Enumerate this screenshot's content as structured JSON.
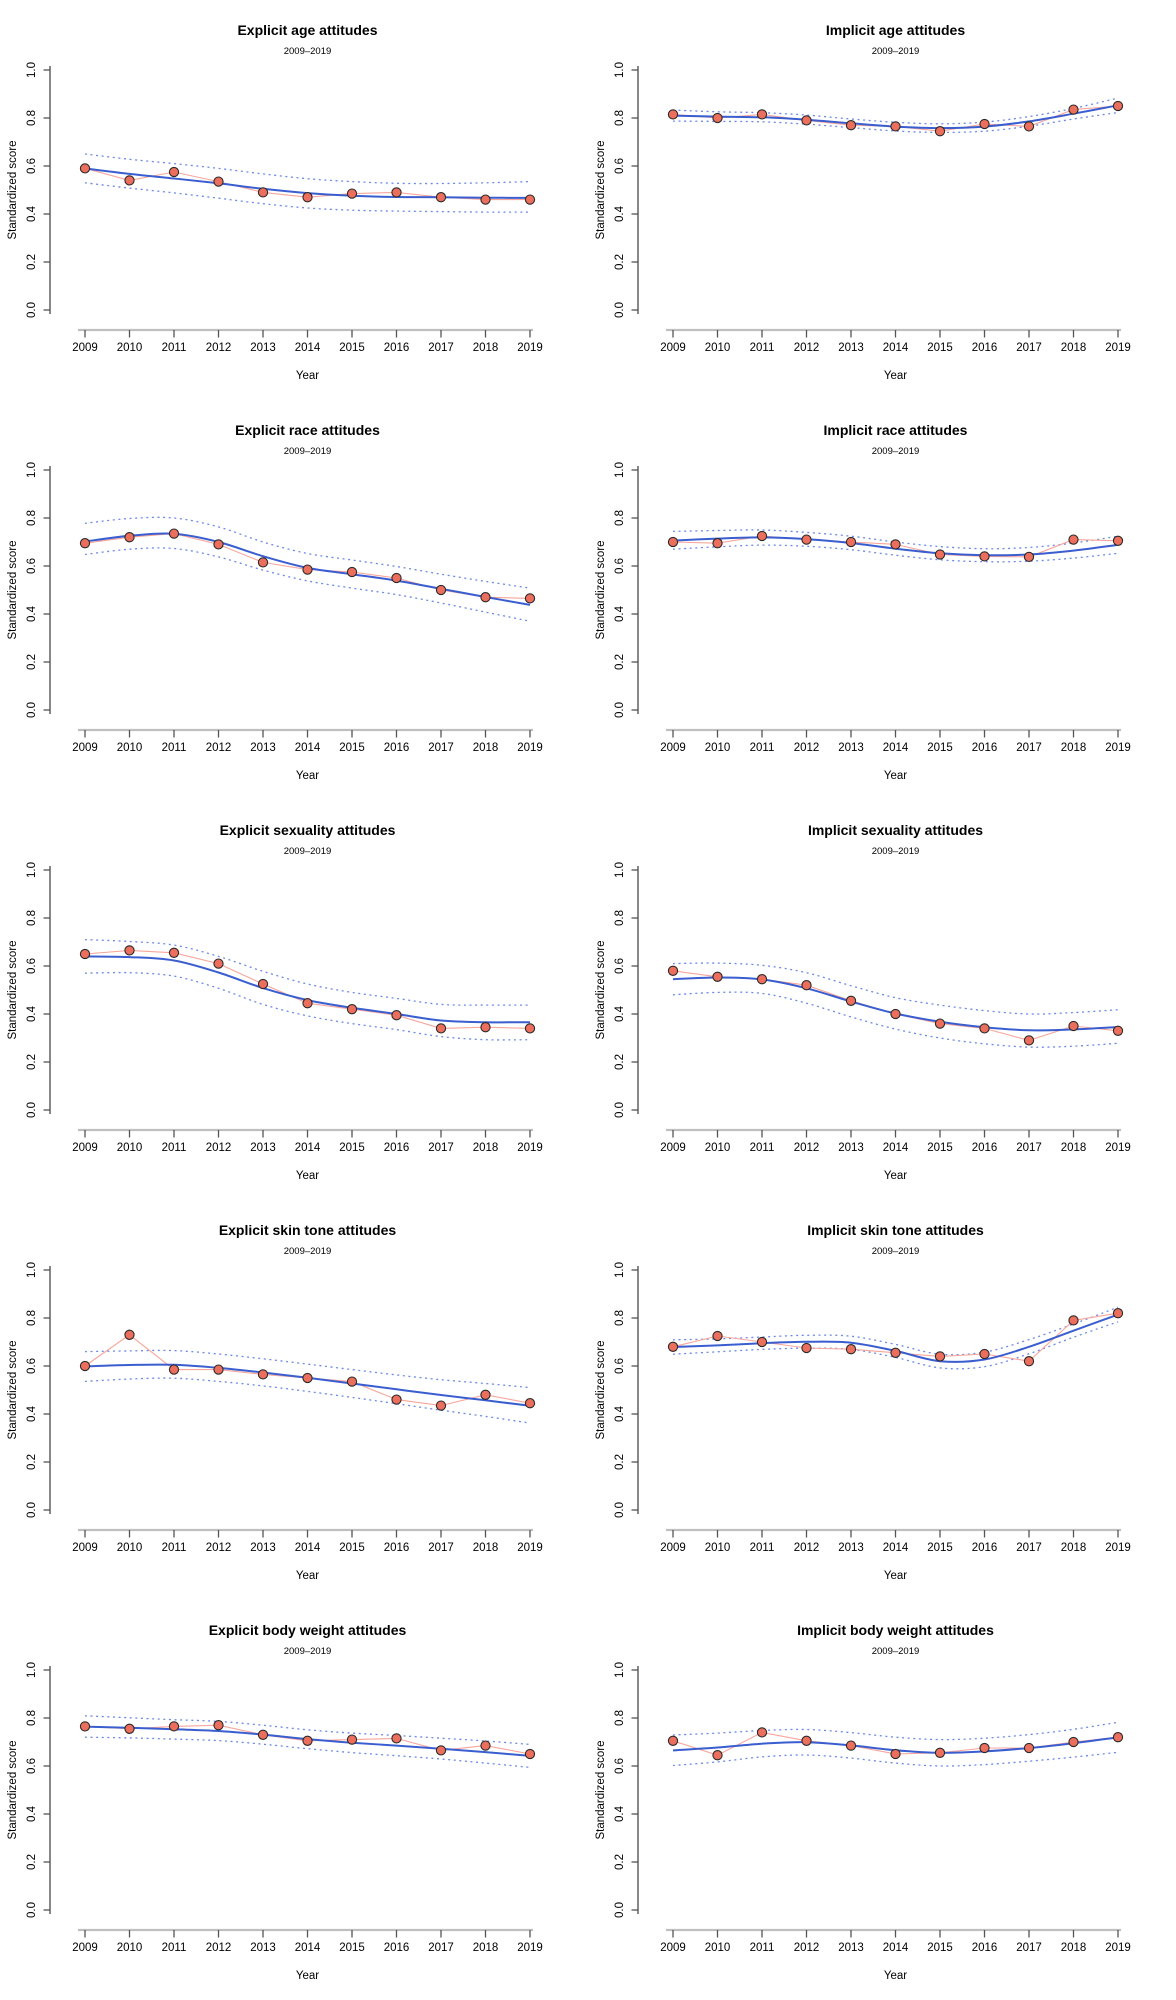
{
  "colors": {
    "point_fill": "#EC6E5D",
    "point_stroke": "#2a2a2a",
    "data_line": "#F7A69B",
    "smooth_line": "#3A5ECF",
    "ci_line": "#5D7CE3",
    "x_axis_line": "#BFBFBF",
    "axis_dark": "#555555",
    "text": "#000000"
  },
  "chart_data": [
    {
      "type": "line",
      "title": "Explicit age attitudes",
      "subtitle": "2009–2019",
      "xlabel": "Year",
      "ylabel": "Standardized score",
      "x": [
        2009,
        2010,
        2011,
        2012,
        2013,
        2014,
        2015,
        2016,
        2017,
        2018,
        2019
      ],
      "ylim": [
        0.0,
        1.0
      ],
      "yticks": [
        0.0,
        0.2,
        0.4,
        0.6,
        0.8,
        1.0
      ],
      "grid": false,
      "legend": "none",
      "series": [
        {
          "name": "observed",
          "style": "points+line",
          "values": [
            0.59,
            0.54,
            0.575,
            0.535,
            0.49,
            0.47,
            0.485,
            0.49,
            0.47,
            0.46,
            0.46
          ]
        },
        {
          "name": "loess_smooth",
          "style": "smooth",
          "values": [
            0.59,
            0.567,
            0.548,
            0.528,
            0.505,
            0.487,
            0.476,
            0.471,
            0.47,
            0.468,
            0.467
          ]
        },
        {
          "name": "ci_upper",
          "style": "dotted",
          "values": [
            0.65,
            0.628,
            0.61,
            0.59,
            0.567,
            0.547,
            0.535,
            0.528,
            0.527,
            0.53,
            0.535
          ]
        },
        {
          "name": "ci_lower",
          "style": "dotted",
          "values": [
            0.53,
            0.508,
            0.488,
            0.466,
            0.443,
            0.425,
            0.416,
            0.412,
            0.41,
            0.408,
            0.408
          ]
        }
      ]
    },
    {
      "type": "line",
      "title": "Implicit age attitudes",
      "subtitle": "2009–2019",
      "xlabel": "Year",
      "ylabel": "Standardized score",
      "x": [
        2009,
        2010,
        2011,
        2012,
        2013,
        2014,
        2015,
        2016,
        2017,
        2018,
        2019
      ],
      "ylim": [
        0.0,
        1.0
      ],
      "yticks": [
        0.0,
        0.2,
        0.4,
        0.6,
        0.8,
        1.0
      ],
      "grid": false,
      "legend": "none",
      "series": [
        {
          "name": "observed",
          "style": "points+line",
          "values": [
            0.815,
            0.8,
            0.815,
            0.79,
            0.77,
            0.765,
            0.745,
            0.775,
            0.765,
            0.835,
            0.85
          ]
        },
        {
          "name": "loess_smooth",
          "style": "smooth",
          "values": [
            0.81,
            0.806,
            0.803,
            0.793,
            0.778,
            0.764,
            0.758,
            0.764,
            0.786,
            0.818,
            0.853
          ]
        },
        {
          "name": "ci_upper",
          "style": "dotted",
          "values": [
            0.833,
            0.826,
            0.822,
            0.812,
            0.796,
            0.782,
            0.776,
            0.783,
            0.806,
            0.84,
            0.883
          ]
        },
        {
          "name": "ci_lower",
          "style": "dotted",
          "values": [
            0.787,
            0.786,
            0.784,
            0.774,
            0.76,
            0.746,
            0.74,
            0.745,
            0.766,
            0.796,
            0.823
          ]
        }
      ]
    },
    {
      "type": "line",
      "title": "Explicit race attitudes",
      "subtitle": "2009–2019",
      "xlabel": "Year",
      "ylabel": "Standardized score",
      "x": [
        2009,
        2010,
        2011,
        2012,
        2013,
        2014,
        2015,
        2016,
        2017,
        2018,
        2019
      ],
      "ylim": [
        0.0,
        1.0
      ],
      "yticks": [
        0.0,
        0.2,
        0.4,
        0.6,
        0.8,
        1.0
      ],
      "grid": false,
      "legend": "none",
      "series": [
        {
          "name": "observed",
          "style": "points+line",
          "values": [
            0.695,
            0.72,
            0.735,
            0.69,
            0.615,
            0.585,
            0.575,
            0.55,
            0.5,
            0.47,
            0.465
          ]
        },
        {
          "name": "loess_smooth",
          "style": "smooth",
          "values": [
            0.702,
            0.726,
            0.734,
            0.7,
            0.641,
            0.592,
            0.566,
            0.539,
            0.505,
            0.471,
            0.438
          ]
        },
        {
          "name": "ci_upper",
          "style": "dotted",
          "values": [
            0.778,
            0.798,
            0.8,
            0.763,
            0.7,
            0.652,
            0.625,
            0.598,
            0.566,
            0.536,
            0.508
          ]
        },
        {
          "name": "ci_lower",
          "style": "dotted",
          "values": [
            0.648,
            0.67,
            0.673,
            0.638,
            0.583,
            0.538,
            0.508,
            0.481,
            0.446,
            0.408,
            0.37
          ]
        }
      ]
    },
    {
      "type": "line",
      "title": "Implicit race attitudes",
      "subtitle": "2009–2019",
      "xlabel": "Year",
      "ylabel": "Standardized score",
      "x": [
        2009,
        2010,
        2011,
        2012,
        2013,
        2014,
        2015,
        2016,
        2017,
        2018,
        2019
      ],
      "ylim": [
        0.0,
        1.0
      ],
      "yticks": [
        0.0,
        0.2,
        0.4,
        0.6,
        0.8,
        1.0
      ],
      "grid": false,
      "legend": "none",
      "series": [
        {
          "name": "observed",
          "style": "points+line",
          "values": [
            0.7,
            0.695,
            0.725,
            0.71,
            0.7,
            0.69,
            0.648,
            0.64,
            0.638,
            0.71,
            0.705
          ]
        },
        {
          "name": "loess_smooth",
          "style": "smooth",
          "values": [
            0.706,
            0.714,
            0.719,
            0.712,
            0.696,
            0.672,
            0.653,
            0.645,
            0.648,
            0.664,
            0.688
          ]
        },
        {
          "name": "ci_upper",
          "style": "dotted",
          "values": [
            0.744,
            0.748,
            0.75,
            0.74,
            0.724,
            0.7,
            0.681,
            0.672,
            0.677,
            0.696,
            0.724
          ]
        },
        {
          "name": "ci_lower",
          "style": "dotted",
          "values": [
            0.67,
            0.68,
            0.687,
            0.682,
            0.668,
            0.645,
            0.626,
            0.618,
            0.62,
            0.633,
            0.653
          ]
        }
      ]
    },
    {
      "type": "line",
      "title": "Explicit sexuality attitudes",
      "subtitle": "2009–2019",
      "xlabel": "Year",
      "ylabel": "Standardized score",
      "x": [
        2009,
        2010,
        2011,
        2012,
        2013,
        2014,
        2015,
        2016,
        2017,
        2018,
        2019
      ],
      "ylim": [
        0.0,
        1.0
      ],
      "yticks": [
        0.0,
        0.2,
        0.4,
        0.6,
        0.8,
        1.0
      ],
      "grid": false,
      "legend": "none",
      "series": [
        {
          "name": "observed",
          "style": "points+line",
          "values": [
            0.65,
            0.665,
            0.655,
            0.61,
            0.525,
            0.445,
            0.42,
            0.395,
            0.34,
            0.345,
            0.34
          ]
        },
        {
          "name": "loess_smooth",
          "style": "smooth",
          "values": [
            0.64,
            0.637,
            0.623,
            0.573,
            0.508,
            0.458,
            0.426,
            0.4,
            0.373,
            0.366,
            0.366
          ]
        },
        {
          "name": "ci_upper",
          "style": "dotted",
          "values": [
            0.71,
            0.702,
            0.687,
            0.64,
            0.578,
            0.525,
            0.49,
            0.465,
            0.44,
            0.437,
            0.437
          ]
        },
        {
          "name": "ci_lower",
          "style": "dotted",
          "values": [
            0.57,
            0.572,
            0.558,
            0.507,
            0.44,
            0.392,
            0.36,
            0.335,
            0.306,
            0.293,
            0.293
          ]
        }
      ]
    },
    {
      "type": "line",
      "title": "Implicit sexuality attitudes",
      "subtitle": "2009–2019",
      "xlabel": "Year",
      "ylabel": "Standardized score",
      "x": [
        2009,
        2010,
        2011,
        2012,
        2013,
        2014,
        2015,
        2016,
        2017,
        2018,
        2019
      ],
      "ylim": [
        0.0,
        1.0
      ],
      "yticks": [
        0.0,
        0.2,
        0.4,
        0.6,
        0.8,
        1.0
      ],
      "grid": false,
      "legend": "none",
      "series": [
        {
          "name": "observed",
          "style": "points+line",
          "values": [
            0.58,
            0.555,
            0.545,
            0.52,
            0.455,
            0.4,
            0.36,
            0.34,
            0.29,
            0.35,
            0.33
          ]
        },
        {
          "name": "loess_smooth",
          "style": "smooth",
          "values": [
            0.545,
            0.552,
            0.544,
            0.507,
            0.452,
            0.402,
            0.368,
            0.345,
            0.332,
            0.336,
            0.346
          ]
        },
        {
          "name": "ci_upper",
          "style": "dotted",
          "values": [
            0.61,
            0.612,
            0.603,
            0.572,
            0.518,
            0.468,
            0.437,
            0.414,
            0.4,
            0.406,
            0.418
          ]
        },
        {
          "name": "ci_lower",
          "style": "dotted",
          "values": [
            0.48,
            0.49,
            0.486,
            0.445,
            0.388,
            0.337,
            0.3,
            0.276,
            0.262,
            0.266,
            0.278
          ]
        }
      ]
    },
    {
      "type": "line",
      "title": "Explicit skin tone attitudes",
      "subtitle": "2009–2019",
      "xlabel": "Year",
      "ylabel": "Standardized score",
      "x": [
        2009,
        2010,
        2011,
        2012,
        2013,
        2014,
        2015,
        2016,
        2017,
        2018,
        2019
      ],
      "ylim": [
        0.0,
        1.0
      ],
      "yticks": [
        0.0,
        0.2,
        0.4,
        0.6,
        0.8,
        1.0
      ],
      "grid": false,
      "legend": "none",
      "series": [
        {
          "name": "observed",
          "style": "points+line",
          "values": [
            0.6,
            0.73,
            0.585,
            0.585,
            0.565,
            0.55,
            0.535,
            0.46,
            0.435,
            0.48,
            0.445
          ]
        },
        {
          "name": "loess_smooth",
          "style": "smooth",
          "values": [
            0.598,
            0.604,
            0.605,
            0.592,
            0.573,
            0.551,
            0.527,
            0.503,
            0.479,
            0.457,
            0.434
          ]
        },
        {
          "name": "ci_upper",
          "style": "dotted",
          "values": [
            0.66,
            0.663,
            0.664,
            0.65,
            0.63,
            0.608,
            0.585,
            0.563,
            0.543,
            0.527,
            0.51
          ]
        },
        {
          "name": "ci_lower",
          "style": "dotted",
          "values": [
            0.536,
            0.546,
            0.549,
            0.536,
            0.517,
            0.494,
            0.469,
            0.443,
            0.416,
            0.39,
            0.362
          ]
        }
      ]
    },
    {
      "type": "line",
      "title": "Implicit skin tone attitudes",
      "subtitle": "2009–2019",
      "xlabel": "Year",
      "ylabel": "Standardized score",
      "x": [
        2009,
        2010,
        2011,
        2012,
        2013,
        2014,
        2015,
        2016,
        2017,
        2018,
        2019
      ],
      "ylim": [
        0.0,
        1.0
      ],
      "yticks": [
        0.0,
        0.2,
        0.4,
        0.6,
        0.8,
        1.0
      ],
      "grid": false,
      "legend": "none",
      "series": [
        {
          "name": "observed",
          "style": "points+line",
          "values": [
            0.68,
            0.725,
            0.7,
            0.675,
            0.67,
            0.655,
            0.64,
            0.65,
            0.62,
            0.79,
            0.82
          ]
        },
        {
          "name": "loess_smooth",
          "style": "smooth",
          "values": [
            0.679,
            0.686,
            0.695,
            0.701,
            0.697,
            0.663,
            0.62,
            0.627,
            0.68,
            0.747,
            0.814
          ]
        },
        {
          "name": "ci_upper",
          "style": "dotted",
          "values": [
            0.709,
            0.713,
            0.721,
            0.728,
            0.724,
            0.69,
            0.649,
            0.658,
            0.71,
            0.775,
            0.845
          ]
        },
        {
          "name": "ci_lower",
          "style": "dotted",
          "values": [
            0.649,
            0.659,
            0.669,
            0.674,
            0.669,
            0.636,
            0.592,
            0.597,
            0.651,
            0.72,
            0.784
          ]
        }
      ]
    },
    {
      "type": "line",
      "title": "Explicit body weight attitudes",
      "subtitle": "2009–2019",
      "xlabel": "Year",
      "ylabel": "Standardized score",
      "x": [
        2009,
        2010,
        2011,
        2012,
        2013,
        2014,
        2015,
        2016,
        2017,
        2018,
        2019
      ],
      "ylim": [
        0.0,
        1.0
      ],
      "yticks": [
        0.0,
        0.2,
        0.4,
        0.6,
        0.8,
        1.0
      ],
      "grid": false,
      "legend": "none",
      "series": [
        {
          "name": "observed",
          "style": "points+line",
          "values": [
            0.765,
            0.755,
            0.765,
            0.77,
            0.73,
            0.705,
            0.71,
            0.715,
            0.665,
            0.685,
            0.65
          ]
        },
        {
          "name": "loess_smooth",
          "style": "smooth",
          "values": [
            0.764,
            0.759,
            0.753,
            0.746,
            0.731,
            0.712,
            0.697,
            0.685,
            0.672,
            0.658,
            0.642
          ]
        },
        {
          "name": "ci_upper",
          "style": "dotted",
          "values": [
            0.809,
            0.801,
            0.793,
            0.786,
            0.77,
            0.751,
            0.737,
            0.727,
            0.716,
            0.704,
            0.69
          ]
        },
        {
          "name": "ci_lower",
          "style": "dotted",
          "values": [
            0.72,
            0.717,
            0.712,
            0.706,
            0.691,
            0.672,
            0.656,
            0.643,
            0.629,
            0.612,
            0.594
          ]
        }
      ]
    },
    {
      "type": "line",
      "title": "Implicit body weight attitudes",
      "subtitle": "2009–2019",
      "xlabel": "Year",
      "ylabel": "Standardized score",
      "x": [
        2009,
        2010,
        2011,
        2012,
        2013,
        2014,
        2015,
        2016,
        2017,
        2018,
        2019
      ],
      "ylim": [
        0.0,
        1.0
      ],
      "yticks": [
        0.0,
        0.2,
        0.4,
        0.6,
        0.8,
        1.0
      ],
      "grid": false,
      "legend": "none",
      "series": [
        {
          "name": "observed",
          "style": "points+line",
          "values": [
            0.705,
            0.645,
            0.74,
            0.705,
            0.685,
            0.65,
            0.655,
            0.675,
            0.675,
            0.7,
            0.72
          ]
        },
        {
          "name": "loess_smooth",
          "style": "smooth",
          "values": [
            0.665,
            0.677,
            0.693,
            0.699,
            0.686,
            0.666,
            0.655,
            0.661,
            0.675,
            0.695,
            0.719
          ]
        },
        {
          "name": "ci_upper",
          "style": "dotted",
          "values": [
            0.729,
            0.737,
            0.748,
            0.752,
            0.739,
            0.72,
            0.71,
            0.716,
            0.731,
            0.753,
            0.782
          ]
        },
        {
          "name": "ci_lower",
          "style": "dotted",
          "values": [
            0.602,
            0.617,
            0.638,
            0.646,
            0.633,
            0.612,
            0.6,
            0.606,
            0.62,
            0.637,
            0.657
          ]
        }
      ]
    }
  ]
}
